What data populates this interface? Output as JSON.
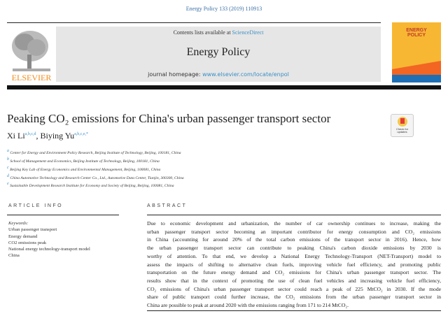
{
  "header": {
    "citation": "Energy Policy 133 (2019) 110913",
    "contents_prefix": "Contents lists available at ",
    "contents_link": "ScienceDirect",
    "journal_name": "Energy Policy",
    "homepage_prefix": "journal homepage: ",
    "homepage_link": "www.elsevier.com/locate/enpol",
    "publisher_logo": "ELSEVIER",
    "cover_title": "ENERGY POLICY"
  },
  "article": {
    "title": "Peaking CO₂ emissions for China's urban passenger transport sector",
    "authors": [
      {
        "name": "Xi Li",
        "sup": "a,b,c,d"
      },
      {
        "name": "Biying Yu",
        "sup": "a,b,c,e,*"
      }
    ],
    "affiliations": [
      {
        "mark": "a",
        "text": "Center for Energy and Environment Policy Research, Beijing Institute of Technology, Beijing, 100181, China"
      },
      {
        "mark": "b",
        "text": "School of Management and Economics, Beijing Institute of Technology, Beijing, 100181, China"
      },
      {
        "mark": "c",
        "text": "Beijing Key Lab of Energy Economics and Environmental Management, Beijing, 100081, China"
      },
      {
        "mark": "d",
        "text": "China Automotive Technology and Research Center Co., Ltd., Automotive Data Center, Tianjin, 300300, China"
      },
      {
        "mark": "e",
        "text": "Sustainable Development Research Institute for Economy and Society of Beijing, Beijing, 100081, China"
      }
    ],
    "check_updates": "Check for updates"
  },
  "article_info": {
    "heading": "ARTICLE INFO",
    "keywords_label": "Keywords:",
    "keywords": [
      "Urban passenger transport",
      "Energy demand",
      "CO2 emissions peak",
      "National energy technology-transport model",
      "China"
    ]
  },
  "abstract": {
    "heading": "ABSTRACT",
    "lines": [
      "Due to economic development and urbanization, the number of car ownership continues to increase, making the",
      "urban passenger transport sector becoming an important contributor for energy consumption and CO₂ emissions",
      "in China (accounting for around 20% of the total carbon emissions of the transport sector in 2016). Hence, how",
      "the urban passenger transport sector can contribute to peaking China's carbon dioxide emissions by 2030 is",
      "worthy of attention. To that end, we develop a National Energy Technology-Transport (NET-Transport) model to",
      "assess the impacts of shifting to alternative clean fuels, improving vehicle fuel efficiency, and promoting public",
      "transportation on the future energy demand and CO₂ emissions for China's urban passenger transport sector. The",
      "results show that in the context of promoting the use of clean fuel vehicles and increasing vehicle fuel efficiency,",
      "CO₂ emissions of China's urban passenger transport sector could reach a peak of 225 MtCO₂ in 2030. If the mode",
      "share of public transport could further increase, the CO₂ emissions from the urban passenger transport sector in",
      "China are possible to peak at around 2020 with the emissions ranging from 171 to 214 MtCO₂."
    ]
  }
}
